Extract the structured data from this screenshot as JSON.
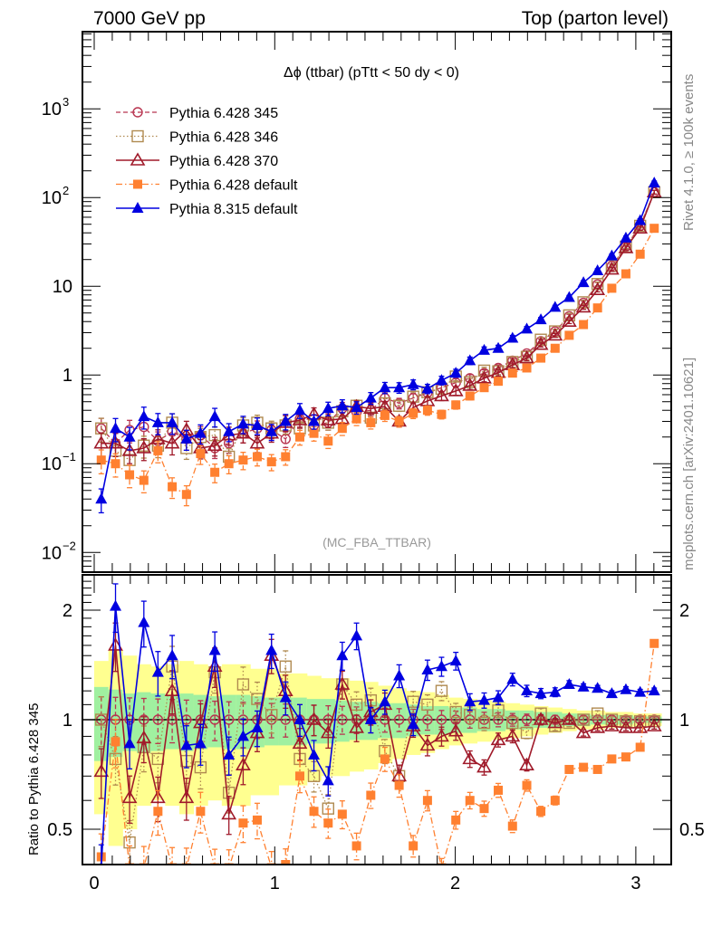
{
  "chart_data": {
    "type": "line",
    "header_left": "7000 GeV pp",
    "header_right": "Top (parton level)",
    "title": "Δϕ (ttbar) (pTtt < 50 dy < 0)",
    "analysis_label": "(MC_FBA_TTBAR)",
    "side_label_top": "Rivet 4.1.0, ≥ 100k events",
    "side_label_bottom": "mcplots.cern.ch [arXiv:2401.10621]",
    "ratio_ylabel": "Ratio to Pythia 6.428 345",
    "main_yscale": "log",
    "main_ylim": [
      0.006,
      7400
    ],
    "main_yticks": [
      {
        "value": 0.01,
        "label": "10",
        "exp": "−2"
      },
      {
        "value": 0.1,
        "label": "10",
        "exp": "−1"
      },
      {
        "value": 1,
        "label": "1",
        "exp": ""
      },
      {
        "value": 10,
        "label": "10",
        "exp": ""
      },
      {
        "value": 100,
        "label": "10",
        "exp": "2"
      },
      {
        "value": 1000,
        "label": "10",
        "exp": "3"
      }
    ],
    "ratio_yscale": "log",
    "ratio_ylim": [
      0.4,
      2.5
    ],
    "ratio_yticks": [
      {
        "value": 0.5,
        "label": "0.5"
      },
      {
        "value": 1,
        "label": "1"
      },
      {
        "value": 2,
        "label": "2"
      }
    ],
    "xlim": [
      -0.05,
      3.2
    ],
    "xticks": [
      0,
      1,
      2,
      3
    ],
    "legend_position": "top-left",
    "x": [
      0.039,
      0.118,
      0.196,
      0.275,
      0.353,
      0.432,
      0.511,
      0.589,
      0.668,
      0.746,
      0.825,
      0.903,
      0.982,
      1.06,
      1.139,
      1.217,
      1.296,
      1.374,
      1.453,
      1.532,
      1.61,
      1.689,
      1.767,
      1.846,
      1.924,
      2.003,
      2.081,
      2.16,
      2.238,
      2.317,
      2.396,
      2.474,
      2.553,
      2.631,
      2.71,
      2.788,
      2.867,
      2.945,
      3.024,
      3.102
    ],
    "series": [
      {
        "name": "Pythia 6.428 345",
        "color": "#b8344f",
        "marker": "open-circle",
        "line": "dashed",
        "values": [
          0.25,
          0.17,
          0.24,
          0.26,
          0.18,
          0.23,
          0.19,
          0.21,
          0.15,
          0.17,
          0.22,
          0.25,
          0.24,
          0.19,
          0.32,
          0.27,
          0.29,
          0.42,
          0.38,
          0.4,
          0.55,
          0.48,
          0.55,
          0.63,
          0.72,
          0.82,
          0.92,
          1.05,
          1.2,
          1.45,
          1.75,
          2.4,
          3.1,
          4.6,
          6.5,
          10.5,
          17,
          28,
          48,
          115
        ],
        "ratio": [
          1,
          1,
          1,
          1,
          1,
          1,
          1,
          1,
          1,
          1,
          1,
          1,
          1,
          1,
          1,
          1,
          1,
          1,
          1,
          1,
          1,
          1,
          1,
          1,
          1,
          1,
          1,
          1,
          1,
          1,
          1,
          1,
          1,
          1,
          1,
          1,
          1,
          1,
          1,
          1
        ]
      },
      {
        "name": "Pythia 6.428 346",
        "color": "#b08a50",
        "marker": "open-square",
        "line": "dotted",
        "values": [
          0.25,
          0.14,
          0.11,
          0.16,
          0.16,
          0.29,
          0.15,
          0.2,
          0.21,
          0.12,
          0.27,
          0.29,
          0.25,
          0.27,
          0.25,
          0.27,
          0.29,
          0.39,
          0.45,
          0.33,
          0.48,
          0.45,
          0.57,
          0.64,
          0.7,
          0.96,
          0.83,
          1.12,
          1.1,
          1.4,
          1.6,
          2.5,
          3.1,
          4.7,
          6.6,
          10.6,
          17,
          28,
          48,
          115
        ],
        "ratio": [
          1.0,
          0.78,
          0.46,
          0.84,
          0.78,
          1.4,
          0.77,
          0.74,
          1.35,
          0.63,
          1.25,
          1.14,
          1.03,
          1.4,
          0.78,
          0.7,
          0.57,
          1.25,
          1.1,
          1.13,
          0.82,
          0.7,
          1.12,
          1.1,
          1.2,
          1.05,
          1.03,
          0.98,
          1.06,
          0.98,
          0.92,
          1.04,
          0.96,
          0.98,
          1.0,
          1.04,
          1.0,
          0.99,
          0.99,
          0.99
        ]
      },
      {
        "name": "Pythia 6.428 370",
        "color": "#a01a2a",
        "marker": "open-triangle",
        "line": "solid",
        "values": [
          0.17,
          0.17,
          0.14,
          0.15,
          0.19,
          0.17,
          0.24,
          0.15,
          0.16,
          0.21,
          0.22,
          0.17,
          0.22,
          0.29,
          0.31,
          0.36,
          0.31,
          0.32,
          0.44,
          0.42,
          0.44,
          0.3,
          0.43,
          0.51,
          0.58,
          0.66,
          0.76,
          0.92,
          1.06,
          1.3,
          1.55,
          2.2,
          2.8,
          4.0,
          5.8,
          9.1,
          15.5,
          27,
          45,
          115
        ],
        "ratio": [
          0.72,
          1.6,
          0.61,
          0.89,
          0.61,
          1.2,
          0.61,
          0.98,
          1.4,
          0.55,
          0.75,
          0.92,
          1.5,
          1.2,
          0.86,
          1.0,
          0.92,
          1.25,
          0.95,
          1.05,
          1.1,
          0.7,
          0.96,
          0.85,
          0.9,
          0.93,
          0.78,
          0.74,
          0.88,
          0.9,
          0.75,
          1.0,
          0.98,
          1.0,
          0.92,
          0.95,
          0.96,
          0.95,
          0.95,
          0.96
        ]
      },
      {
        "name": "Pythia 6.428 default",
        "color": "#ff8030",
        "marker": "filled-square",
        "line": "dashdot",
        "values": [
          0.11,
          0.1,
          0.075,
          0.065,
          0.14,
          0.055,
          0.045,
          0.13,
          0.08,
          0.1,
          0.11,
          0.12,
          0.105,
          0.12,
          0.2,
          0.22,
          0.18,
          0.25,
          0.32,
          0.29,
          0.35,
          0.3,
          0.37,
          0.4,
          0.36,
          0.46,
          0.58,
          0.72,
          0.85,
          1.05,
          1.2,
          1.55,
          2.0,
          2.8,
          3.7,
          5.7,
          9.5,
          13.8,
          23,
          45
        ],
        "ratio": [
          0.42,
          0.87,
          0.35,
          0.26,
          0.56,
          0.26,
          0.2,
          0.56,
          0.25,
          0.35,
          0.52,
          0.53,
          0.3,
          0.4,
          0.7,
          0.56,
          0.52,
          0.55,
          0.45,
          0.62,
          0.78,
          0.66,
          0.45,
          0.6,
          0.3,
          0.53,
          0.6,
          0.57,
          0.64,
          0.51,
          0.66,
          0.56,
          0.6,
          0.73,
          0.74,
          0.73,
          0.78,
          0.79,
          0.84,
          1.62
        ]
      },
      {
        "name": "Pythia 8.315 default",
        "color": "#0000e0",
        "marker": "filled-triangle",
        "line": "solid",
        "values": [
          0.04,
          0.25,
          0.2,
          0.34,
          0.29,
          0.29,
          0.19,
          0.22,
          0.34,
          0.23,
          0.28,
          0.27,
          0.23,
          0.3,
          0.4,
          0.3,
          0.42,
          0.45,
          0.43,
          0.55,
          0.72,
          0.72,
          0.78,
          0.7,
          0.87,
          1.05,
          1.45,
          1.9,
          2.0,
          2.6,
          3.3,
          4.2,
          5.8,
          7.5,
          11,
          15,
          22,
          35,
          55,
          146
        ],
        "ratio": [
          0.14,
          2.05,
          0.86,
          1.85,
          1.35,
          1.5,
          0.85,
          0.86,
          1.55,
          0.8,
          0.9,
          0.95,
          1.55,
          1.15,
          1.0,
          0.8,
          0.68,
          1.5,
          1.7,
          1.0,
          1.12,
          1.32,
          0.97,
          1.37,
          1.4,
          1.45,
          1.12,
          1.13,
          1.15,
          1.29,
          1.2,
          1.18,
          1.19,
          1.25,
          1.23,
          1.22,
          1.18,
          1.21,
          1.19,
          1.2
        ]
      }
    ],
    "uncertainty_bands": {
      "inner_color": "#a0f0a0",
      "outer_color": "#ffff90",
      "inner": [
        0.23,
        0.21,
        0.18,
        0.19,
        0.18,
        0.17,
        0.18,
        0.17,
        0.16,
        0.17,
        0.17,
        0.16,
        0.15,
        0.15,
        0.15,
        0.14,
        0.14,
        0.13,
        0.12,
        0.12,
        0.11,
        0.11,
        0.1,
        0.09,
        0.09,
        0.08,
        0.08,
        0.07,
        0.07,
        0.06,
        0.06,
        0.05,
        0.05,
        0.04,
        0.04,
        0.03,
        0.03,
        0.03,
        0.02,
        0.02
      ],
      "outer": [
        0.45,
        0.55,
        0.5,
        0.42,
        0.4,
        0.42,
        0.45,
        0.42,
        0.4,
        0.42,
        0.42,
        0.38,
        0.38,
        0.34,
        0.34,
        0.32,
        0.3,
        0.3,
        0.28,
        0.27,
        0.24,
        0.22,
        0.2,
        0.19,
        0.17,
        0.15,
        0.14,
        0.13,
        0.12,
        0.11,
        0.1,
        0.09,
        0.08,
        0.07,
        0.06,
        0.06,
        0.05,
        0.05,
        0.04,
        0.04
      ]
    }
  }
}
